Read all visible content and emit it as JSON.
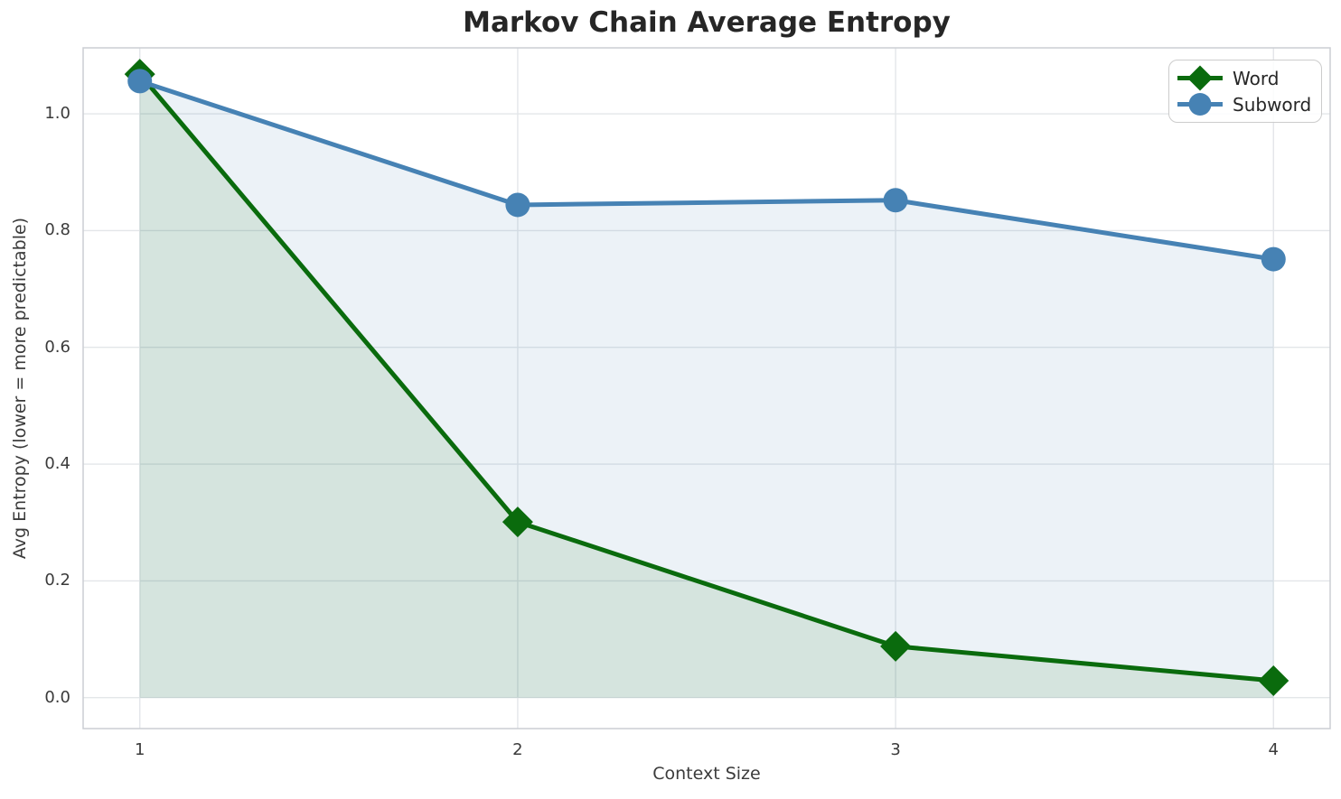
{
  "chart_data": {
    "type": "line",
    "title": "Markov Chain Average Entropy",
    "xlabel": "Context Size",
    "ylabel": "Avg Entropy (lower = more predictable)",
    "x": [
      1,
      2,
      3,
      4
    ],
    "xticks": [
      "1",
      "2",
      "3",
      "4"
    ],
    "yticks": [
      0.0,
      0.2,
      0.4,
      0.6,
      0.8,
      1.0
    ],
    "xlim": [
      0.85,
      4.15
    ],
    "ylim": [
      -0.053,
      1.113
    ],
    "grid": true,
    "legend_position": "upper right",
    "fill_baseline": 0,
    "fill_alpha": 0.1,
    "series": [
      {
        "name": "Word",
        "color": "#0a6b0d",
        "marker": "diamond",
        "values": [
          1.068,
          0.301,
          0.088,
          0.029
        ]
      },
      {
        "name": "Subword",
        "color": "#4682b4",
        "marker": "circle",
        "values": [
          1.056,
          0.844,
          0.852,
          0.751
        ]
      }
    ],
    "style": {
      "grid_color": "#e3e6e9",
      "spine_color": "#cbced3",
      "tick_color": "#3b3b3b",
      "title_color": "#262626"
    }
  }
}
